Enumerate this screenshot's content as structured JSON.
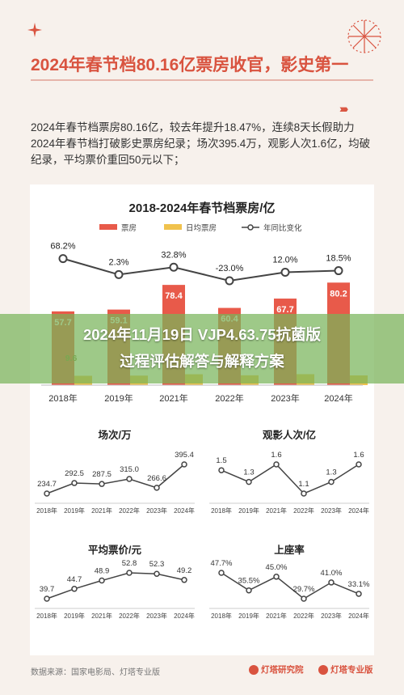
{
  "header": {
    "title": "2024年春节档80.16亿票房收官，影史第一",
    "summary": "2024年春节档票房80.16亿，较去年提升18.47%，连续8天长假助力2024年春节档打破影史票房纪录；场次395.4万，观影人次1.6亿，均破纪录，平均票价重回50元以下；",
    "arrows": "›››››"
  },
  "colors": {
    "accent": "#d9533f",
    "bar_box": "#e85a4a",
    "bar_price": "#f0c24d",
    "line": "#444444"
  },
  "chart_data": [
    {
      "type": "bar",
      "title": "2018-2024年春节档票房/亿",
      "categories": [
        "2018年",
        "2019年",
        "2021年",
        "2022年",
        "2023年",
        "2024年"
      ],
      "legend": [
        "票房",
        "日均票房",
        "年同比变化"
      ],
      "series": [
        {
          "name": "票房",
          "values": [
            57.7,
            59.1,
            78.4,
            60.4,
            67.7,
            80.2
          ],
          "labels": [
            "57.7",
            "59.1",
            "78.4",
            "60.4",
            "67.7",
            "80.2"
          ]
        },
        {
          "name": "日均票房",
          "values": [
            9.6,
            9.8,
            11.2,
            10.1,
            11.3,
            10.0
          ],
          "labels": [
            "9.6",
            "",
            "",
            "",
            "",
            ""
          ]
        },
        {
          "name": "年同比变化",
          "values": [
            68.2,
            2.3,
            32.8,
            -23.0,
            12.0,
            18.5
          ],
          "labels": [
            "68.2%",
            "2.3%",
            "32.8%",
            "-23.0%",
            "12.0%",
            "18.5%"
          ]
        }
      ]
    },
    {
      "type": "line",
      "title": "场次/万",
      "x": [
        "2018年",
        "2019年",
        "2021年",
        "2022年",
        "2023年",
        "2024年"
      ],
      "values": [
        234.7,
        292.5,
        287.5,
        315.0,
        266.6,
        395.4
      ],
      "labels": [
        "234.7",
        "292.5",
        "287.5",
        "315.0",
        "266.6",
        "395.4"
      ]
    },
    {
      "type": "line",
      "title": "观影人次/亿",
      "x": [
        "2018年",
        "2019年",
        "2021年",
        "2022年",
        "2023年",
        "2024年"
      ],
      "values": [
        1.5,
        1.3,
        1.6,
        1.1,
        1.3,
        1.6
      ],
      "labels": [
        "1.5",
        "1.3",
        "1.6",
        "1.1",
        "1.3",
        "1.6"
      ]
    },
    {
      "type": "line",
      "title": "平均票价/元",
      "x": [
        "2018年",
        "2019年",
        "2021年",
        "2022年",
        "2023年",
        "2024年"
      ],
      "values": [
        39.7,
        44.7,
        48.9,
        52.8,
        52.3,
        49.2
      ],
      "labels": [
        "39.7",
        "44.7",
        "48.9",
        "52.8",
        "52.3",
        "49.2"
      ]
    },
    {
      "type": "line",
      "title": "上座率",
      "x": [
        "2018年",
        "2019年",
        "2021年",
        "2022年",
        "2023年",
        "2024年"
      ],
      "values": [
        47.7,
        35.5,
        45.0,
        29.7,
        41.0,
        33.1
      ],
      "labels": [
        "47.7%",
        "35.5%",
        "45.0%",
        "29.7%",
        "41.0%",
        "33.1%"
      ]
    }
  ],
  "banner": {
    "line1": "2024年11月19日 VJP4.63.75抗菌版",
    "line2": "过程评估解答与解释方案"
  },
  "footer": {
    "source": "数据来源：国家电影局、灯塔专业版",
    "logo1": "灯塔研究院",
    "logo2": "灯塔专业版"
  }
}
